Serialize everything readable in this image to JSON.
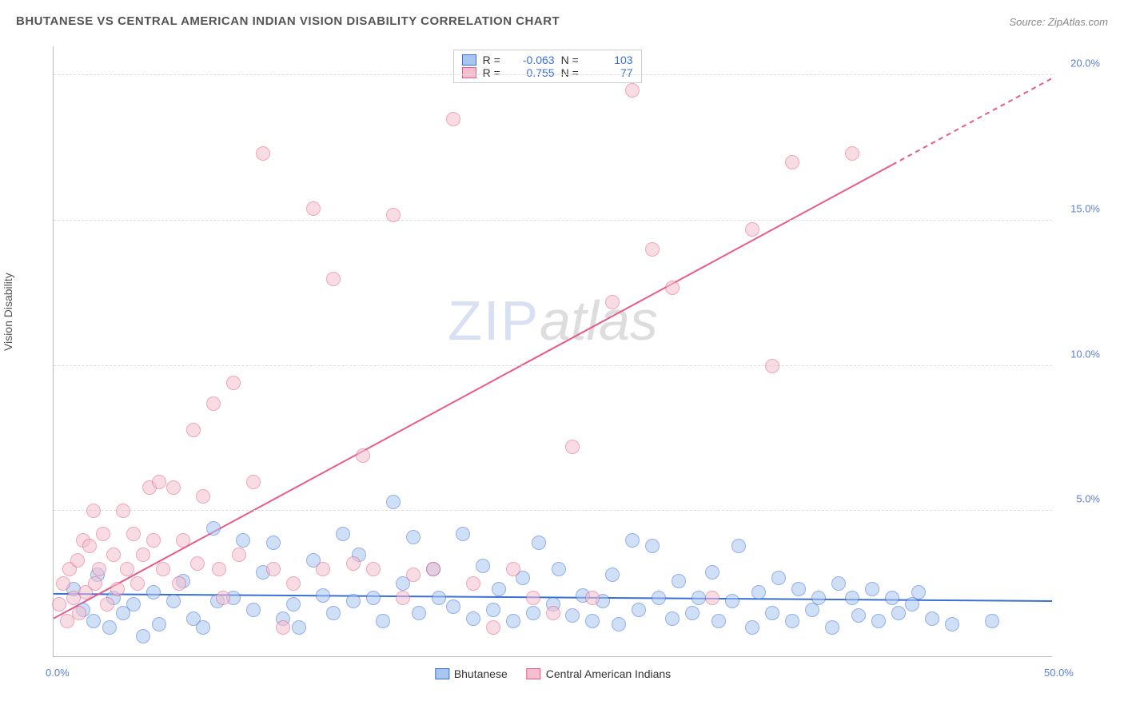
{
  "title": "BHUTANESE VS CENTRAL AMERICAN INDIAN VISION DISABILITY CORRELATION CHART",
  "source": "Source: ZipAtlas.com",
  "y_axis_label": "Vision Disability",
  "watermark_a": "ZIP",
  "watermark_b": "atlas",
  "chart": {
    "type": "scatter",
    "xlim": [
      0,
      50
    ],
    "ylim": [
      0,
      21
    ],
    "y_ticks": [
      5,
      10,
      15,
      20
    ],
    "y_tick_labels": [
      "5.0%",
      "10.0%",
      "15.0%",
      "20.0%"
    ],
    "x_ticks": [
      0,
      50
    ],
    "x_tick_labels": [
      "0.0%",
      "50.0%"
    ],
    "grid_color": "#dddddd",
    "background_color": "#ffffff",
    "axis_color": "#bbbbbb",
    "tick_label_color": "#5b7fd1",
    "marker_radius": 9,
    "marker_opacity": 0.55,
    "series": [
      {
        "name": "Bhutanese",
        "color_fill": "#a9c6ef",
        "color_stroke": "#3b6fd8",
        "trend": {
          "slope": -0.005,
          "intercept": 2.15,
          "dash_after_x": 50,
          "width": 2
        },
        "stats": {
          "R": "-0.063",
          "N": "103"
        },
        "points": [
          [
            1,
            2.3
          ],
          [
            1.5,
            1.6
          ],
          [
            2,
            1.2
          ],
          [
            2.2,
            2.8
          ],
          [
            2.8,
            1.0
          ],
          [
            3,
            2.0
          ],
          [
            3.5,
            1.5
          ],
          [
            4,
            1.8
          ],
          [
            4.5,
            0.7
          ],
          [
            5,
            2.2
          ],
          [
            5.3,
            1.1
          ],
          [
            6,
            1.9
          ],
          [
            6.5,
            2.6
          ],
          [
            7,
            1.3
          ],
          [
            7.5,
            1.0
          ],
          [
            8,
            4.4
          ],
          [
            8.2,
            1.9
          ],
          [
            9,
            2.0
          ],
          [
            9.5,
            4.0
          ],
          [
            10,
            1.6
          ],
          [
            10.5,
            2.9
          ],
          [
            11,
            3.9
          ],
          [
            11.5,
            1.3
          ],
          [
            12,
            1.8
          ],
          [
            12.3,
            1.0
          ],
          [
            13,
            3.3
          ],
          [
            13.5,
            2.1
          ],
          [
            14,
            1.5
          ],
          [
            14.5,
            4.2
          ],
          [
            15,
            1.9
          ],
          [
            15.3,
            3.5
          ],
          [
            16,
            2.0
          ],
          [
            16.5,
            1.2
          ],
          [
            17,
            5.3
          ],
          [
            17.5,
            2.5
          ],
          [
            18,
            4.1
          ],
          [
            18.3,
            1.5
          ],
          [
            19,
            3.0
          ],
          [
            19.3,
            2.0
          ],
          [
            20,
            1.7
          ],
          [
            20.5,
            4.2
          ],
          [
            21,
            1.3
          ],
          [
            21.5,
            3.1
          ],
          [
            22,
            1.6
          ],
          [
            22.3,
            2.3
          ],
          [
            23,
            1.2
          ],
          [
            23.5,
            2.7
          ],
          [
            24,
            1.5
          ],
          [
            24.3,
            3.9
          ],
          [
            25,
            1.8
          ],
          [
            25.3,
            3.0
          ],
          [
            26,
            1.4
          ],
          [
            26.5,
            2.1
          ],
          [
            27,
            1.2
          ],
          [
            27.5,
            1.9
          ],
          [
            28,
            2.8
          ],
          [
            28.3,
            1.1
          ],
          [
            29,
            4.0
          ],
          [
            29.3,
            1.6
          ],
          [
            30,
            3.8
          ],
          [
            30.3,
            2.0
          ],
          [
            31,
            1.3
          ],
          [
            31.3,
            2.6
          ],
          [
            32,
            1.5
          ],
          [
            32.3,
            2.0
          ],
          [
            33,
            2.9
          ],
          [
            33.3,
            1.2
          ],
          [
            34,
            1.9
          ],
          [
            34.3,
            3.8
          ],
          [
            35,
            1.0
          ],
          [
            35.3,
            2.2
          ],
          [
            36,
            1.5
          ],
          [
            36.3,
            2.7
          ],
          [
            37,
            1.2
          ],
          [
            37.3,
            2.3
          ],
          [
            38,
            1.6
          ],
          [
            38.3,
            2.0
          ],
          [
            39,
            1.0
          ],
          [
            39.3,
            2.5
          ],
          [
            40,
            2.0
          ],
          [
            40.3,
            1.4
          ],
          [
            41,
            2.3
          ],
          [
            41.3,
            1.2
          ],
          [
            42,
            2.0
          ],
          [
            42.3,
            1.5
          ],
          [
            43,
            1.8
          ],
          [
            43.3,
            2.2
          ],
          [
            44,
            1.3
          ],
          [
            45,
            1.1
          ],
          [
            47,
            1.2
          ]
        ]
      },
      {
        "name": "Central American Indians",
        "color_fill": "#f4c0cf",
        "color_stroke": "#e85a87",
        "trend": {
          "slope": 0.372,
          "intercept": 1.3,
          "dash_after_x": 42,
          "width": 2
        },
        "stats": {
          "R": "0.755",
          "N": "77"
        },
        "points": [
          [
            0.3,
            1.8
          ],
          [
            0.5,
            2.5
          ],
          [
            0.7,
            1.2
          ],
          [
            0.8,
            3.0
          ],
          [
            1.0,
            2.0
          ],
          [
            1.2,
            3.3
          ],
          [
            1.3,
            1.5
          ],
          [
            1.5,
            4.0
          ],
          [
            1.6,
            2.2
          ],
          [
            1.8,
            3.8
          ],
          [
            2.0,
            5.0
          ],
          [
            2.1,
            2.5
          ],
          [
            2.3,
            3.0
          ],
          [
            2.5,
            4.2
          ],
          [
            2.7,
            1.8
          ],
          [
            3.0,
            3.5
          ],
          [
            3.2,
            2.3
          ],
          [
            3.5,
            5.0
          ],
          [
            3.7,
            3.0
          ],
          [
            4.0,
            4.2
          ],
          [
            4.2,
            2.5
          ],
          [
            4.5,
            3.5
          ],
          [
            4.8,
            5.8
          ],
          [
            5.0,
            4.0
          ],
          [
            5.3,
            6.0
          ],
          [
            5.5,
            3.0
          ],
          [
            6.0,
            5.8
          ],
          [
            6.3,
            2.5
          ],
          [
            6.5,
            4.0
          ],
          [
            7.0,
            7.8
          ],
          [
            7.2,
            3.2
          ],
          [
            7.5,
            5.5
          ],
          [
            8.0,
            8.7
          ],
          [
            8.3,
            3.0
          ],
          [
            8.5,
            2.0
          ],
          [
            9.0,
            9.4
          ],
          [
            9.3,
            3.5
          ],
          [
            10,
            6.0
          ],
          [
            10.5,
            17.3
          ],
          [
            11,
            3.0
          ],
          [
            11.5,
            1.0
          ],
          [
            12,
            2.5
          ],
          [
            13,
            15.4
          ],
          [
            13.5,
            3.0
          ],
          [
            14,
            13.0
          ],
          [
            15,
            3.2
          ],
          [
            15.5,
            6.9
          ],
          [
            16,
            3.0
          ],
          [
            17,
            15.2
          ],
          [
            17.5,
            2.0
          ],
          [
            18,
            2.8
          ],
          [
            19,
            3.0
          ],
          [
            20,
            18.5
          ],
          [
            21,
            2.5
          ],
          [
            22,
            1.0
          ],
          [
            23,
            3.0
          ],
          [
            24,
            2.0
          ],
          [
            25,
            1.5
          ],
          [
            26,
            7.2
          ],
          [
            27,
            2.0
          ],
          [
            28,
            12.2
          ],
          [
            29,
            19.5
          ],
          [
            30,
            14.0
          ],
          [
            31,
            12.7
          ],
          [
            33,
            2.0
          ],
          [
            35,
            14.7
          ],
          [
            36,
            10.0
          ],
          [
            37,
            17.0
          ],
          [
            40,
            17.3
          ]
        ]
      }
    ]
  },
  "bottom_legend": [
    {
      "label": "Bhutanese",
      "fill": "#a9c6ef",
      "stroke": "#3b6fd8"
    },
    {
      "label": "Central American Indians",
      "fill": "#f4c0cf",
      "stroke": "#e85a87"
    }
  ],
  "stats_labels": {
    "r": "R =",
    "n": "N ="
  }
}
